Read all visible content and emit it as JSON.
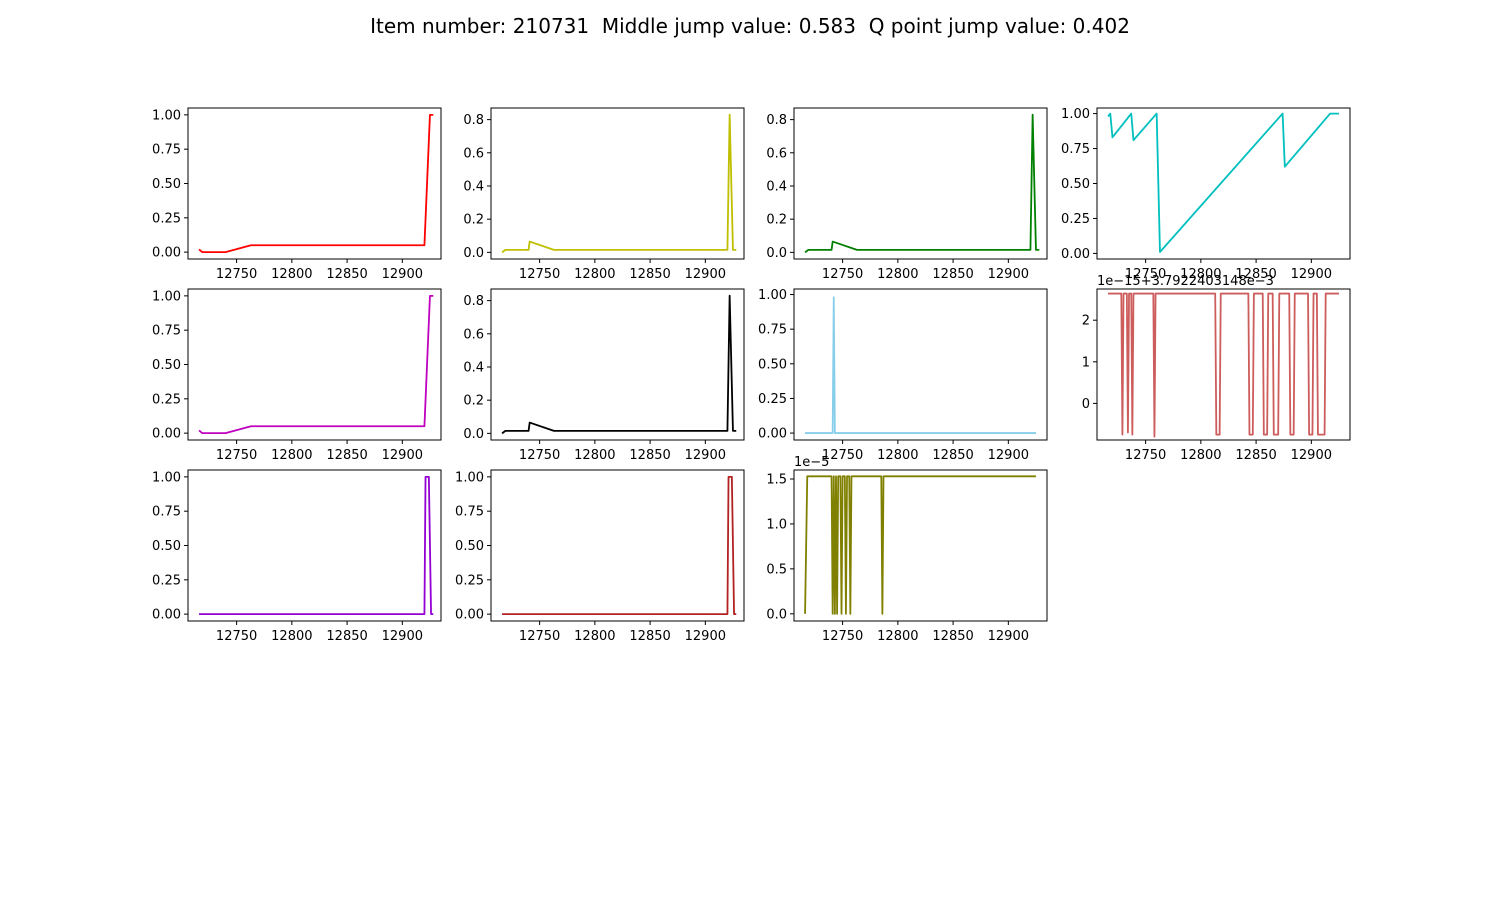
{
  "figure": {
    "title": "Item number: 210731  Middle jump value: 0.583  Q point jump value: 0.402"
  },
  "chart_data": [
    {
      "type": "line",
      "color": "#ff0000",
      "xlim": [
        12706,
        12935
      ],
      "ylim": [
        -0.05,
        1.05
      ],
      "xticks": [
        12750,
        12800,
        12850,
        12900
      ],
      "yticks": [
        {
          "v": 0.0,
          "label": "0.00"
        },
        {
          "v": 0.25,
          "label": "0.25"
        },
        {
          "v": 0.5,
          "label": "0.50"
        },
        {
          "v": 0.75,
          "label": "0.75"
        },
        {
          "v": 1.0,
          "label": "1.00"
        }
      ],
      "points": [
        [
          12716,
          0.02
        ],
        [
          12719,
          0.0
        ],
        [
          12740,
          0.0
        ],
        [
          12763,
          0.05
        ],
        [
          12920,
          0.05
        ],
        [
          12925,
          1.0
        ],
        [
          12928,
          1.0
        ]
      ]
    },
    {
      "type": "line",
      "color": "#bfbf00",
      "xlim": [
        12706,
        12935
      ],
      "ylim": [
        -0.04,
        0.87
      ],
      "xticks": [
        12750,
        12800,
        12850,
        12900
      ],
      "yticks": [
        {
          "v": 0.0,
          "label": "0.0"
        },
        {
          "v": 0.2,
          "label": "0.2"
        },
        {
          "v": 0.4,
          "label": "0.4"
        },
        {
          "v": 0.6,
          "label": "0.6"
        },
        {
          "v": 0.8,
          "label": "0.8"
        }
      ],
      "points": [
        [
          12716,
          0.0
        ],
        [
          12719,
          0.015
        ],
        [
          12740,
          0.015
        ],
        [
          12741,
          0.065
        ],
        [
          12763,
          0.015
        ],
        [
          12920,
          0.015
        ],
        [
          12922,
          0.83
        ],
        [
          12925,
          0.015
        ],
        [
          12928,
          0.015
        ]
      ]
    },
    {
      "type": "line",
      "color": "#008000",
      "xlim": [
        12706,
        12935
      ],
      "ylim": [
        -0.04,
        0.87
      ],
      "xticks": [
        12750,
        12800,
        12850,
        12900
      ],
      "yticks": [
        {
          "v": 0.0,
          "label": "0.0"
        },
        {
          "v": 0.2,
          "label": "0.2"
        },
        {
          "v": 0.4,
          "label": "0.4"
        },
        {
          "v": 0.6,
          "label": "0.6"
        },
        {
          "v": 0.8,
          "label": "0.8"
        }
      ],
      "points": [
        [
          12716,
          0.0
        ],
        [
          12719,
          0.015
        ],
        [
          12740,
          0.015
        ],
        [
          12741,
          0.065
        ],
        [
          12763,
          0.015
        ],
        [
          12920,
          0.015
        ],
        [
          12922,
          0.83
        ],
        [
          12925,
          0.015
        ],
        [
          12928,
          0.015
        ]
      ]
    },
    {
      "type": "line",
      "color": "#00bfbf",
      "xlim": [
        12706,
        12935
      ],
      "ylim": [
        -0.04,
        1.04
      ],
      "xticks": [
        12750,
        12800,
        12850,
        12900
      ],
      "yticks": [
        {
          "v": 0.0,
          "label": "0.00"
        },
        {
          "v": 0.25,
          "label": "0.25"
        },
        {
          "v": 0.5,
          "label": "0.50"
        },
        {
          "v": 0.75,
          "label": "0.75"
        },
        {
          "v": 1.0,
          "label": "1.00"
        }
      ],
      "points": [
        [
          12716,
          0.98
        ],
        [
          12718,
          1.0
        ],
        [
          12720,
          0.83
        ],
        [
          12737,
          1.0
        ],
        [
          12739,
          0.81
        ],
        [
          12760,
          1.0
        ],
        [
          12763,
          0.01
        ],
        [
          12874,
          1.0
        ],
        [
          12876,
          0.62
        ],
        [
          12917,
          1.0
        ],
        [
          12925,
          1.0
        ]
      ]
    },
    {
      "type": "line",
      "color": "#bf00bf",
      "xlim": [
        12706,
        12935
      ],
      "ylim": [
        -0.05,
        1.05
      ],
      "xticks": [
        12750,
        12800,
        12850,
        12900
      ],
      "yticks": [
        {
          "v": 0.0,
          "label": "0.00"
        },
        {
          "v": 0.25,
          "label": "0.25"
        },
        {
          "v": 0.5,
          "label": "0.50"
        },
        {
          "v": 0.75,
          "label": "0.75"
        },
        {
          "v": 1.0,
          "label": "1.00"
        }
      ],
      "points": [
        [
          12716,
          0.02
        ],
        [
          12719,
          0.0
        ],
        [
          12740,
          0.0
        ],
        [
          12763,
          0.05
        ],
        [
          12920,
          0.05
        ],
        [
          12925,
          1.0
        ],
        [
          12928,
          1.0
        ]
      ]
    },
    {
      "type": "line",
      "color": "#000000",
      "xlim": [
        12706,
        12935
      ],
      "ylim": [
        -0.04,
        0.87
      ],
      "xticks": [
        12750,
        12800,
        12850,
        12900
      ],
      "yticks": [
        {
          "v": 0.0,
          "label": "0.0"
        },
        {
          "v": 0.2,
          "label": "0.2"
        },
        {
          "v": 0.4,
          "label": "0.4"
        },
        {
          "v": 0.6,
          "label": "0.6"
        },
        {
          "v": 0.8,
          "label": "0.8"
        }
      ],
      "points": [
        [
          12716,
          0.0
        ],
        [
          12719,
          0.015
        ],
        [
          12740,
          0.015
        ],
        [
          12741,
          0.065
        ],
        [
          12763,
          0.015
        ],
        [
          12920,
          0.015
        ],
        [
          12922,
          0.83
        ],
        [
          12925,
          0.015
        ],
        [
          12928,
          0.015
        ]
      ]
    },
    {
      "type": "line",
      "color": "#87ceeb",
      "xlim": [
        12706,
        12935
      ],
      "ylim": [
        -0.05,
        1.04
      ],
      "xticks": [
        12750,
        12800,
        12850,
        12900
      ],
      "yticks": [
        {
          "v": 0.0,
          "label": "0.00"
        },
        {
          "v": 0.25,
          "label": "0.25"
        },
        {
          "v": 0.5,
          "label": "0.50"
        },
        {
          "v": 0.75,
          "label": "0.75"
        },
        {
          "v": 1.0,
          "label": "1.00"
        }
      ],
      "points": [
        [
          12716,
          0.0
        ],
        [
          12741,
          0.0
        ],
        [
          12742,
          0.98
        ],
        [
          12743,
          0.0
        ],
        [
          12925,
          0.0
        ]
      ]
    },
    {
      "type": "line",
      "color": "#cd5c5c",
      "offset_label": "1e−15+3.7922403148e−3",
      "xlim": [
        12706,
        12935
      ],
      "ylim": [
        -0.88,
        2.75
      ],
      "xticks": [
        12750,
        12800,
        12850,
        12900
      ],
      "yticks": [
        {
          "v": 0,
          "label": "0"
        },
        {
          "v": 1,
          "label": "1"
        },
        {
          "v": 2,
          "label": "2"
        }
      ],
      "points": [
        [
          12716,
          2.64
        ],
        [
          12728,
          2.64
        ],
        [
          12729,
          -0.75
        ],
        [
          12730,
          2.64
        ],
        [
          12733,
          2.64
        ],
        [
          12734,
          -0.7
        ],
        [
          12735,
          2.64
        ],
        [
          12737,
          2.64
        ],
        [
          12738,
          -0.75
        ],
        [
          12739,
          2.64
        ],
        [
          12757,
          2.64
        ],
        [
          12758,
          -0.8
        ],
        [
          12759,
          2.64
        ],
        [
          12813,
          2.64
        ],
        [
          12814,
          -0.75
        ],
        [
          12817,
          -0.75
        ],
        [
          12818,
          2.64
        ],
        [
          12843,
          2.64
        ],
        [
          12844,
          -0.75
        ],
        [
          12847,
          -0.75
        ],
        [
          12848,
          2.64
        ],
        [
          12856,
          2.64
        ],
        [
          12857,
          -0.75
        ],
        [
          12860,
          -0.75
        ],
        [
          12861,
          2.64
        ],
        [
          12865,
          2.64
        ],
        [
          12866,
          -0.75
        ],
        [
          12870,
          -0.75
        ],
        [
          12871,
          2.64
        ],
        [
          12880,
          2.64
        ],
        [
          12881,
          -0.75
        ],
        [
          12884,
          -0.75
        ],
        [
          12885,
          2.64
        ],
        [
          12897,
          2.64
        ],
        [
          12898,
          -0.75
        ],
        [
          12901,
          -0.75
        ],
        [
          12902,
          2.64
        ],
        [
          12905,
          2.64
        ],
        [
          12906,
          -0.75
        ],
        [
          12912,
          -0.75
        ],
        [
          12913,
          2.64
        ],
        [
          12925,
          2.64
        ]
      ]
    },
    {
      "type": "line",
      "color": "#9400d3",
      "xlim": [
        12706,
        12935
      ],
      "ylim": [
        -0.05,
        1.05
      ],
      "xticks": [
        12750,
        12800,
        12850,
        12900
      ],
      "yticks": [
        {
          "v": 0.0,
          "label": "0.00"
        },
        {
          "v": 0.25,
          "label": "0.25"
        },
        {
          "v": 0.5,
          "label": "0.50"
        },
        {
          "v": 0.75,
          "label": "0.75"
        },
        {
          "v": 1.0,
          "label": "1.00"
        }
      ],
      "points": [
        [
          12716,
          0.0
        ],
        [
          12920,
          0.0
        ],
        [
          12921,
          1.0
        ],
        [
          12924,
          1.0
        ],
        [
          12926,
          0.0
        ],
        [
          12928,
          0.0
        ]
      ]
    },
    {
      "type": "line",
      "color": "#b22222",
      "xlim": [
        12706,
        12935
      ],
      "ylim": [
        -0.05,
        1.05
      ],
      "xticks": [
        12750,
        12800,
        12850,
        12900
      ],
      "yticks": [
        {
          "v": 0.0,
          "label": "0.00"
        },
        {
          "v": 0.25,
          "label": "0.25"
        },
        {
          "v": 0.5,
          "label": "0.50"
        },
        {
          "v": 0.75,
          "label": "0.75"
        },
        {
          "v": 1.0,
          "label": "1.00"
        }
      ],
      "points": [
        [
          12716,
          0.0
        ],
        [
          12920,
          0.0
        ],
        [
          12921,
          1.0
        ],
        [
          12924,
          1.0
        ],
        [
          12926,
          0.0
        ],
        [
          12928,
          0.0
        ]
      ]
    },
    {
      "type": "line",
      "color": "#808000",
      "offset_label": "1e−5",
      "xlim": [
        12706,
        12935
      ],
      "ylim": [
        -0.08,
        1.6
      ],
      "xticks": [
        12750,
        12800,
        12850,
        12900
      ],
      "yticks": [
        {
          "v": 0.0,
          "label": "0.0"
        },
        {
          "v": 0.5,
          "label": "0.5"
        },
        {
          "v": 1.0,
          "label": "1.0"
        },
        {
          "v": 1.5,
          "label": "1.5"
        }
      ],
      "points": [
        [
          12716,
          0.0
        ],
        [
          12718,
          1.53
        ],
        [
          12740,
          1.53
        ],
        [
          12741,
          0.0
        ],
        [
          12742,
          1.53
        ],
        [
          12743,
          0.0
        ],
        [
          12744,
          1.53
        ],
        [
          12745,
          0.0
        ],
        [
          12746,
          1.53
        ],
        [
          12748,
          1.53
        ],
        [
          12749,
          0.0
        ],
        [
          12750,
          1.53
        ],
        [
          12752,
          1.53
        ],
        [
          12753,
          0.0
        ],
        [
          12754,
          1.53
        ],
        [
          12756,
          1.53
        ],
        [
          12757,
          0.0
        ],
        [
          12758,
          1.53
        ],
        [
          12785,
          1.53
        ],
        [
          12786,
          0.0
        ],
        [
          12787,
          1.53
        ],
        [
          12925,
          1.53
        ]
      ]
    }
  ]
}
